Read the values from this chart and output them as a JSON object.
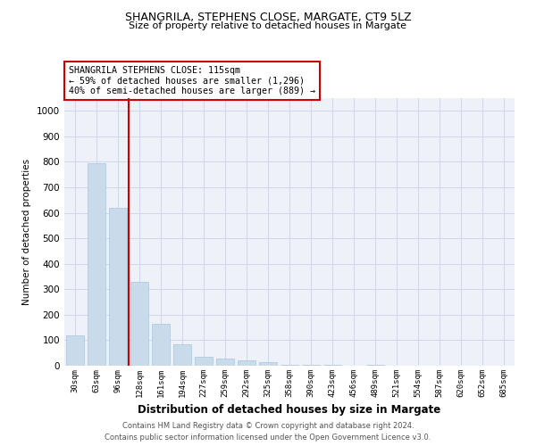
{
  "title": "SHANGRILA, STEPHENS CLOSE, MARGATE, CT9 5LZ",
  "subtitle": "Size of property relative to detached houses in Margate",
  "xlabel": "Distribution of detached houses by size in Margate",
  "ylabel": "Number of detached properties",
  "footer_line1": "Contains HM Land Registry data © Crown copyright and database right 2024.",
  "footer_line2": "Contains public sector information licensed under the Open Government Licence v3.0.",
  "categories": [
    "30sqm",
    "63sqm",
    "96sqm",
    "128sqm",
    "161sqm",
    "194sqm",
    "227sqm",
    "259sqm",
    "292sqm",
    "325sqm",
    "358sqm",
    "390sqm",
    "423sqm",
    "456sqm",
    "489sqm",
    "521sqm",
    "554sqm",
    "587sqm",
    "620sqm",
    "652sqm",
    "685sqm"
  ],
  "values": [
    120,
    795,
    620,
    330,
    165,
    83,
    35,
    27,
    20,
    14,
    5,
    3,
    5,
    0,
    5,
    0,
    0,
    0,
    0,
    0,
    0
  ],
  "bar_color": "#c9daea",
  "bar_edge_color": "#a8c4de",
  "grid_color": "#d0d8e8",
  "background_color": "#eef2f8",
  "annotation_line1": "SHANGRILA STEPHENS CLOSE: 115sqm",
  "annotation_line2": "← 59% of detached houses are smaller (1,296)",
  "annotation_line3": "40% of semi-detached houses are larger (889) →",
  "marker_color": "#cc0000",
  "annotation_box_edge": "#cc0000",
  "marker_bar_index": 2,
  "ylim": [
    0,
    1050
  ],
  "yticks": [
    0,
    100,
    200,
    300,
    400,
    500,
    600,
    700,
    800,
    900,
    1000
  ]
}
